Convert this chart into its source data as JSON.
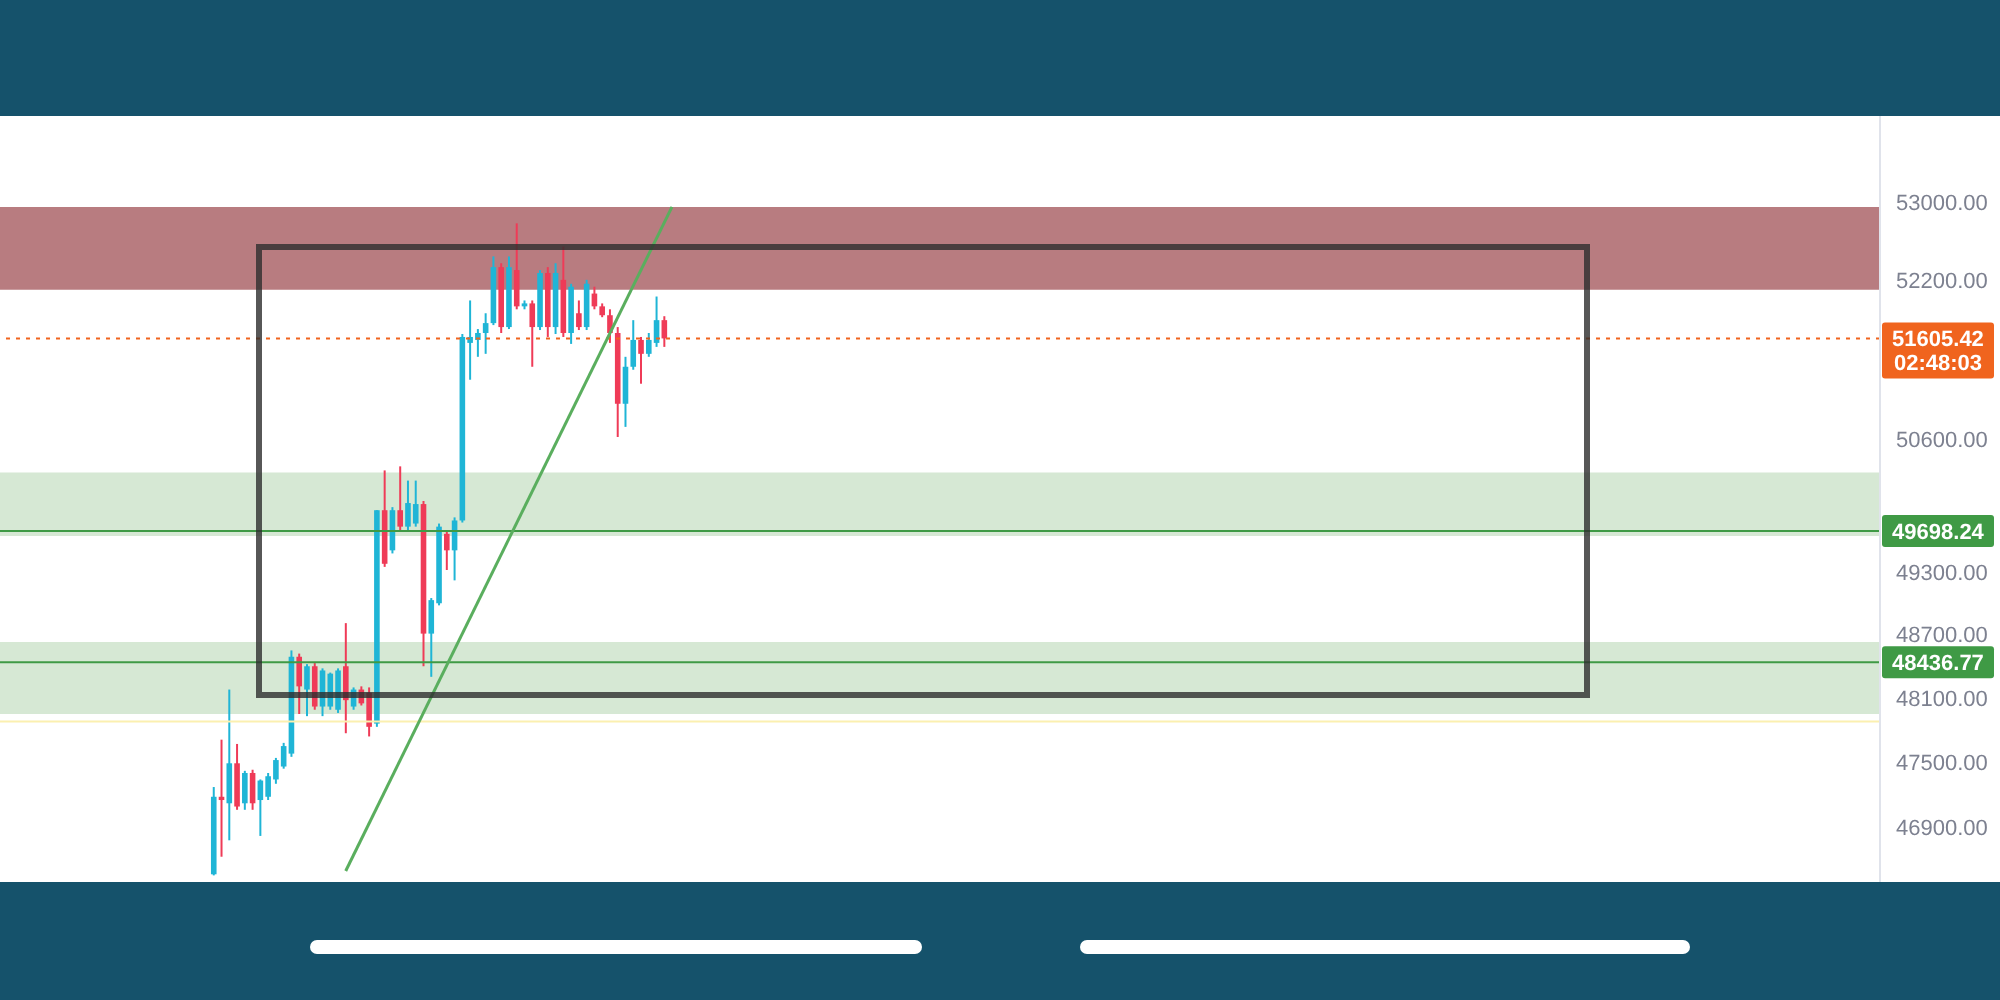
{
  "chart_data": {
    "type": "candlestick",
    "log": true,
    "tick_labels": "y",
    "categories": [
      null,
      null,
      null,
      null,
      null,
      null,
      null,
      null,
      null,
      null,
      null,
      null,
      null,
      null,
      null,
      null,
      null,
      null,
      null,
      null,
      null,
      null,
      null,
      null,
      null,
      null,
      null,
      null,
      null,
      null,
      null,
      null,
      null,
      null,
      null,
      null,
      null,
      null,
      null,
      null,
      null,
      null,
      null,
      null,
      null,
      null,
      null,
      null,
      null,
      null,
      null,
      null,
      null,
      null,
      null,
      null,
      null,
      null,
      null,
      null,
      null,
      null,
      null,
      null,
      null,
      null,
      null,
      null,
      null,
      null,
      null,
      null,
      null,
      null,
      null,
      null,
      null,
      null,
      null,
      null,
      null,
      null,
      null,
      null,
      null,
      null,
      null,
      null,
      null,
      null,
      null,
      null,
      null,
      null,
      null,
      null,
      null,
      null,
      null,
      null,
      null,
      null,
      null,
      null,
      null,
      null,
      null,
      null,
      null,
      null,
      null,
      null,
      null,
      null,
      null,
      null,
      null,
      null,
      null,
      null,
      null,
      null,
      null,
      null,
      null,
      null,
      null,
      null,
      null,
      null,
      null,
      null,
      null,
      null,
      null,
      null,
      null,
      null,
      null,
      null,
      null,
      null,
      null,
      null,
      null,
      null,
      null,
      null,
      null,
      null,
      null,
      null,
      null,
      null,
      null,
      null,
      null,
      null,
      null,
      null,
      null,
      null,
      null,
      null,
      null,
      null,
      null,
      null,
      null,
      null,
      null,
      null,
      null,
      null,
      null,
      null,
      null,
      null,
      null,
      null,
      null,
      null,
      null,
      null,
      null,
      null,
      null,
      null,
      null,
      null,
      null,
      null,
      null,
      null,
      null,
      null,
      null,
      null,
      null,
      null,
      null,
      null,
      null,
      null,
      null,
      null,
      null,
      null,
      null,
      null,
      null,
      null,
      null,
      null,
      null,
      null,
      null,
      null,
      null,
      null,
      null,
      null,
      null,
      null,
      null,
      null,
      null,
      null,
      null,
      null,
      null,
      null,
      null,
      null,
      null,
      null,
      null,
      null,
      null,
      null,
      null,
      null
    ],
    "ohlc": [
      null,
      null,
      null,
      null,
      null,
      null,
      null,
      null,
      null,
      null,
      null,
      null,
      null,
      null,
      null,
      null,
      null,
      null,
      null,
      null,
      null,
      null,
      null,
      null,
      null,
      null,
      null,
      [
        46470,
        47270,
        46460,
        47180
      ],
      [
        47180,
        47710,
        46630,
        47150
      ],
      [
        47120,
        48180,
        46780,
        47490
      ],
      [
        47490,
        47670,
        47060,
        47090
      ],
      [
        47120,
        47420,
        47060,
        47400
      ],
      [
        47400,
        47430,
        47060,
        47120
      ],
      [
        47150,
        47340,
        46820,
        47330
      ],
      [
        47180,
        47400,
        47150,
        47370
      ],
      [
        47340,
        47540,
        47300,
        47520
      ],
      [
        47460,
        47680,
        47440,
        47650
      ],
      [
        47580,
        48550,
        47550,
        48490
      ],
      [
        48490,
        48520,
        47950,
        48210
      ],
      [
        48180,
        48420,
        47930,
        48400
      ],
      [
        48400,
        48430,
        47990,
        48020
      ],
      [
        48020,
        48380,
        47930,
        48360
      ],
      [
        48020,
        48340,
        47990,
        48330
      ],
      [
        47990,
        48380,
        47960,
        48360
      ],
      [
        48400,
        48810,
        47770,
        48080
      ],
      [
        48020,
        48200,
        47990,
        48180
      ],
      [
        48180,
        48210,
        48030,
        48050
      ],
      [
        48150,
        48200,
        47740,
        47830
      ],
      [
        47860,
        49900,
        47830,
        49900
      ],
      [
        49900,
        50290,
        49350,
        49380
      ],
      [
        49510,
        49930,
        49480,
        49900
      ],
      [
        49900,
        50330,
        49700,
        49740
      ],
      [
        49740,
        50190,
        49700,
        49970
      ],
      [
        49770,
        50190,
        49740,
        49960
      ],
      [
        49960,
        49990,
        48400,
        48710
      ],
      [
        48710,
        49050,
        48300,
        49030
      ],
      [
        49000,
        49770,
        48980,
        49740
      ],
      [
        49670,
        49700,
        49320,
        49510
      ],
      [
        49510,
        49830,
        49220,
        49800
      ],
      [
        49800,
        51650,
        49780,
        51620
      ],
      [
        51560,
        51990,
        51190,
        51620
      ],
      [
        51590,
        51700,
        51420,
        51660
      ],
      [
        51660,
        51860,
        51450,
        51760
      ],
      [
        51760,
        52440,
        51740,
        52330
      ],
      [
        52330,
        52370,
        51660,
        51720
      ],
      [
        51720,
        52440,
        51700,
        52330
      ],
      [
        52300,
        52780,
        51900,
        51930
      ],
      [
        51930,
        51990,
        51900,
        51960
      ],
      [
        51960,
        51990,
        51320,
        51720
      ],
      [
        51720,
        52300,
        51690,
        52270
      ],
      [
        52270,
        52330,
        51620,
        51720
      ],
      [
        51720,
        52370,
        51650,
        52270
      ],
      [
        52200,
        52540,
        51620,
        51660
      ],
      [
        51660,
        52160,
        51550,
        52130
      ],
      [
        51860,
        51990,
        51690,
        51720
      ],
      [
        51720,
        52200,
        51690,
        52160
      ],
      [
        52060,
        52130,
        51900,
        51930
      ],
      [
        51930,
        51960,
        51820,
        51840
      ],
      [
        51840,
        51900,
        51560,
        51660
      ],
      [
        51660,
        51720,
        50620,
        50950
      ],
      [
        50950,
        51420,
        50720,
        51320
      ],
      [
        51320,
        51790,
        51290,
        51590
      ],
      [
        51590,
        51620,
        51150,
        51450
      ],
      [
        51450,
        51660,
        51420,
        51590
      ],
      [
        51560,
        52030,
        51520,
        51790
      ],
      [
        51790,
        51830,
        51520,
        51605.42
      ],
      null,
      null,
      null,
      null,
      null,
      null,
      null,
      null,
      null,
      null,
      null,
      null,
      null,
      null,
      null,
      null,
      null,
      null,
      null,
      null,
      null,
      null,
      null,
      null,
      null,
      null,
      null,
      null,
      null,
      null,
      null,
      null,
      null,
      null,
      null,
      null,
      null,
      null,
      null,
      null,
      null,
      null,
      null,
      null,
      null,
      null,
      null,
      null,
      null,
      null,
      null,
      null,
      null,
      null,
      null,
      null,
      null,
      null,
      null,
      null,
      null,
      null,
      null,
      null,
      null,
      null,
      null,
      null,
      null,
      null,
      null,
      null,
      null,
      null,
      null,
      null,
      null,
      null,
      null,
      null,
      null,
      null,
      null,
      null,
      null,
      null,
      null,
      null,
      null,
      null,
      null,
      null,
      null,
      null,
      null,
      null,
      null,
      null,
      null,
      null,
      null,
      null,
      null,
      null,
      null,
      null,
      null,
      null,
      null,
      null,
      null,
      null,
      null,
      null,
      null,
      null,
      null,
      null,
      null,
      null,
      null,
      null,
      null,
      null,
      null,
      null,
      null,
      null,
      null,
      null,
      null,
      null,
      null,
      null,
      null,
      null,
      null,
      null,
      null,
      null,
      null,
      null,
      null,
      null,
      null,
      null,
      null,
      null,
      null,
      null,
      null,
      null,
      null,
      null,
      null,
      null
    ],
    "colors": [
      null,
      null,
      null,
      null,
      null,
      null,
      null,
      null,
      null,
      null,
      null,
      null,
      null,
      null,
      null,
      null,
      null,
      null,
      null,
      null,
      null,
      null,
      null,
      null,
      null,
      null,
      null,
      "#1fb5d6",
      "#ef3b57",
      "#1fb5d6",
      "#ef3b57",
      "#1fb5d6",
      "#ef3b57",
      "#1fb5d6",
      "#1fb5d6",
      "#1fb5d6",
      "#1fb5d6",
      "#1fb5d6",
      "#ef3b57",
      "#1fb5d6",
      "#ef3b57",
      "#1fb5d6",
      "#1fb5d6",
      "#1fb5d6",
      "#ef3b57",
      "#1fb5d6",
      "#ef3b57",
      "#ef3b57",
      "#1fb5d6",
      "#ef3b57",
      "#1fb5d6",
      "#ef3b57",
      "#1fb5d6",
      "#1fb5d6",
      "#ef3b57",
      "#1fb5d6",
      "#1fb5d6",
      "#ef3b57",
      "#1fb5d6",
      "#1fb5d6",
      "#1fb5d6",
      "#1fb5d6",
      "#1fb5d6",
      "#1fb5d6",
      "#ef3b57",
      "#1fb5d6",
      "#ef3b57",
      "#1fb5d6",
      "#ef3b57",
      "#1fb5d6",
      "#ef3b57",
      "#1fb5d6",
      "#ef3b57",
      "#1fb5d6",
      "#ef3b57",
      "#1fb5d6",
      "#ef3b57",
      "#ef3b57",
      "#ef3b57",
      "#ef3b57",
      "#1fb5d6",
      "#1fb5d6",
      "#ef3b57",
      "#1fb5d6",
      "#1fb5d6",
      "#ef3b57",
      null,
      null,
      null,
      null,
      null,
      null,
      null,
      null,
      null,
      null,
      null,
      null,
      null,
      null,
      null,
      null,
      null,
      null,
      null,
      null,
      null,
      null,
      null,
      null,
      null,
      null,
      null,
      null,
      null,
      null,
      null,
      null,
      null,
      null,
      null,
      null,
      null,
      null,
      null,
      null,
      null,
      null,
      null,
      null,
      null,
      null,
      null,
      null,
      null,
      null,
      null,
      null,
      null,
      null,
      null,
      null,
      null,
      null,
      null,
      null,
      null,
      null,
      null,
      null,
      null,
      null,
      null,
      null,
      null,
      null,
      null,
      null,
      null,
      null,
      null,
      null,
      null,
      null,
      null,
      null,
      null,
      null,
      null,
      null,
      null,
      null,
      null,
      null,
      null,
      null,
      null,
      null,
      null,
      null,
      null,
      null,
      null,
      null,
      null,
      null,
      null,
      null,
      null,
      null,
      null,
      null,
      null,
      null,
      null,
      null,
      null,
      null,
      null,
      null,
      null,
      null,
      null,
      null,
      null,
      null,
      null,
      null,
      null,
      null,
      null,
      null,
      null,
      null,
      null,
      null,
      null,
      null,
      null,
      null,
      null,
      null,
      null,
      null,
      null,
      null,
      null,
      null,
      null,
      null,
      null,
      null,
      null,
      null,
      null,
      null,
      null,
      null,
      null,
      null,
      null,
      null
    ],
    "series": [
      {
        "type": "line",
        "color": "#5aae5e",
        "values": [
          null,
          null,
          null,
          null,
          null,
          null,
          null,
          null,
          null,
          null,
          null,
          null,
          null,
          null,
          null,
          null,
          null,
          null,
          null,
          null,
          null,
          null,
          null,
          null,
          null,
          null,
          null,
          null,
          null,
          null,
          null,
          null,
          null,
          null,
          null,
          null,
          null,
          null,
          null,
          null,
          null,
          null,
          null,
          null,
          46500,
          null,
          null,
          null,
          null,
          null,
          null,
          null,
          null,
          null,
          null,
          null,
          null,
          null,
          null,
          null,
          null,
          null,
          null,
          null,
          null,
          null,
          null,
          null,
          null,
          null,
          null,
          null,
          null,
          null,
          null,
          null,
          null,
          null,
          null,
          null,
          null,
          null,
          null,
          null,
          null,
          null,
          52950,
          null,
          null,
          null,
          null,
          null,
          null,
          null,
          null,
          null,
          null,
          null,
          null,
          null,
          null,
          null,
          null,
          null,
          null,
          null,
          null,
          null,
          null,
          null,
          null,
          null,
          null,
          null,
          null,
          null,
          null,
          null,
          null,
          null,
          null,
          null,
          null,
          null,
          null,
          null,
          null,
          null,
          null,
          null,
          null,
          null,
          null,
          null,
          null,
          null,
          null,
          null,
          null,
          null,
          null,
          null,
          null,
          null,
          null,
          null,
          null,
          null,
          null,
          null,
          null,
          null,
          null,
          null,
          null,
          null,
          null,
          null,
          null,
          null,
          null,
          null,
          null,
          null,
          null,
          null,
          null,
          null,
          null,
          null,
          null,
          null,
          null,
          null,
          null,
          null,
          null,
          null,
          null,
          null,
          null,
          null,
          null,
          null,
          null,
          null,
          null,
          null,
          null,
          null,
          null,
          null,
          null,
          null,
          null,
          null,
          null,
          null,
          null,
          null,
          null,
          null,
          null,
          null,
          null,
          null,
          null,
          null,
          null,
          null,
          null,
          null,
          null,
          null,
          null,
          null,
          null,
          null,
          null,
          null,
          null,
          null,
          null,
          null,
          null,
          null,
          null,
          null,
          null,
          null,
          null,
          null,
          null,
          null,
          null,
          null,
          null,
          null,
          null,
          null,
          null,
          null
        ]
      }
    ],
    "ylim": [
      46400,
      53900
    ],
    "yticks": [
      {
        "value": 53000,
        "label": "53000.00"
      },
      {
        "value": 52200,
        "label": "52200.00"
      },
      {
        "value": 50600,
        "label": "50600.00"
      },
      {
        "value": 49300,
        "label": "49300.00"
      },
      {
        "value": 48700,
        "label": "48700.00"
      },
      {
        "value": 48100,
        "label": "48100.00"
      },
      {
        "value": 47500,
        "label": "47500.00"
      },
      {
        "value": 46900,
        "label": "46900.00"
      }
    ],
    "bands": [
      {
        "axis": "y",
        "from": 52100,
        "to": 52950,
        "color": "#b87c80"
      },
      {
        "axis": "y",
        "from": 49650,
        "to": 50270,
        "color": "#d6e8d4"
      },
      {
        "axis": "y",
        "from": 47950,
        "to": 48630,
        "color": "#d6e8d4"
      }
    ],
    "ref_lines": [
      {
        "axis": "y",
        "value": 51605.42,
        "label": "51605.42\n02:48:03",
        "color": "#f0641e",
        "line_style": "dotted"
      },
      {
        "axis": "y",
        "value": 49698.24,
        "label": "49698.24",
        "color": "#3f9a45"
      },
      {
        "axis": "y",
        "value": 48436.77,
        "label": "48436.77",
        "color": "#3f9a45"
      },
      {
        "axis": "y",
        "value": 47880,
        "color": "#fbf0b0"
      }
    ]
  }
}
